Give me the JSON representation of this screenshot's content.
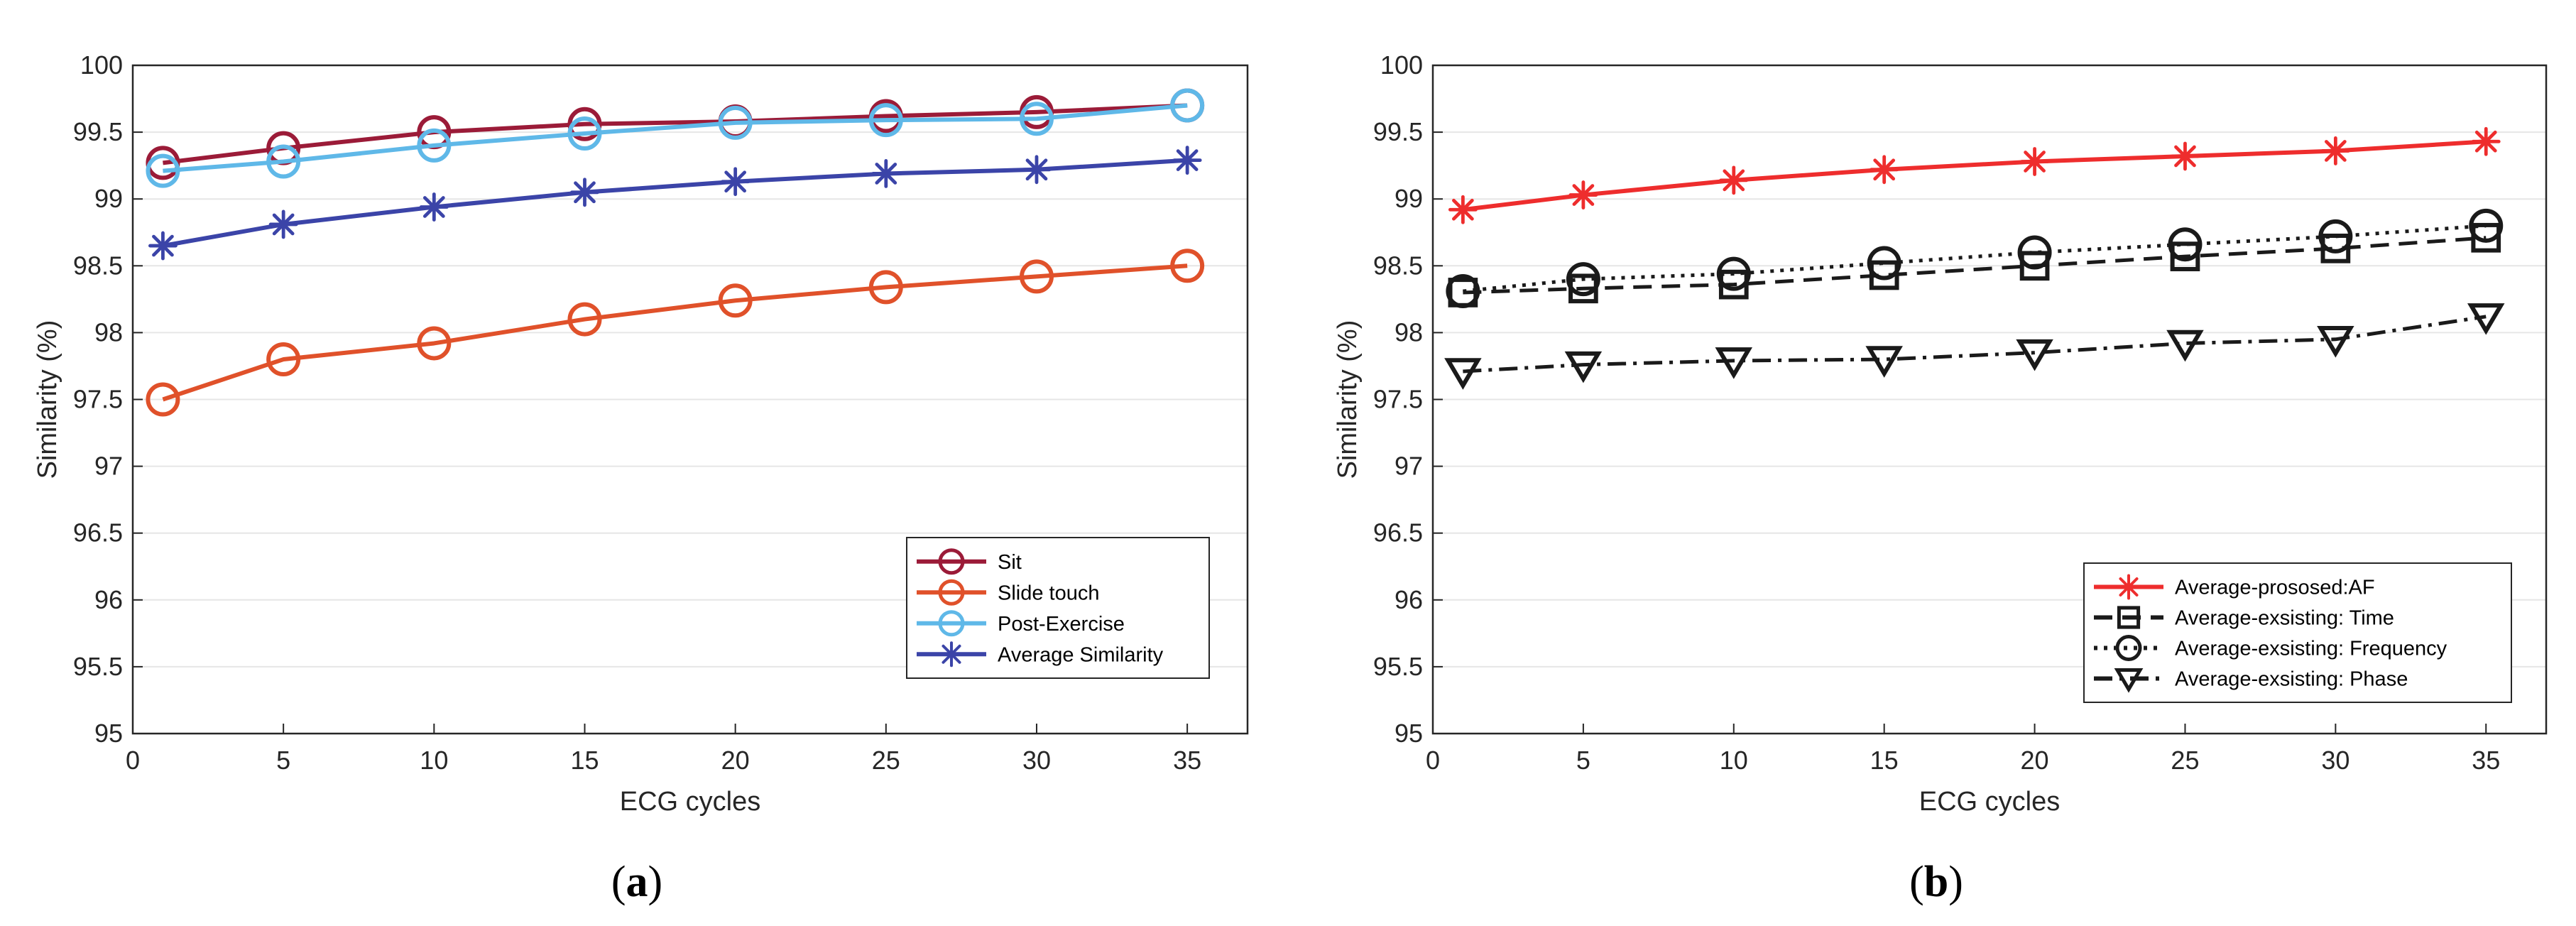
{
  "chart_data": [
    {
      "type": "line",
      "panel_label": {
        "open": "(",
        "letter": "a",
        "close": ")"
      },
      "xlabel": "ECG cycles",
      "ylabel": "Similarity (%)",
      "xlim": [
        0,
        37
      ],
      "ylim": [
        95,
        100
      ],
      "xticks": [
        0,
        5,
        10,
        15,
        20,
        25,
        30,
        35
      ],
      "yticks": [
        95,
        95.5,
        96,
        96.5,
        97,
        97.5,
        98,
        98.5,
        99,
        99.5,
        100
      ],
      "grid": "horizontal",
      "legend_position": "bottom-right",
      "x": [
        1,
        5,
        10,
        15,
        20,
        25,
        30,
        35
      ],
      "series": [
        {
          "name": "Sit",
          "color": "#9b1b38",
          "marker": "circle",
          "dash": "solid",
          "values": [
            99.27,
            99.38,
            99.5,
            99.56,
            99.58,
            99.62,
            99.65,
            99.7
          ]
        },
        {
          "name": "Slide touch",
          "color": "#e0512a",
          "marker": "circle",
          "dash": "solid",
          "values": [
            97.5,
            97.8,
            97.92,
            98.1,
            98.24,
            98.34,
            98.42,
            98.5
          ]
        },
        {
          "name": "Post-Exercise",
          "color": "#5fb8e8",
          "marker": "circle",
          "dash": "solid",
          "values": [
            99.21,
            99.28,
            99.4,
            99.49,
            99.57,
            99.59,
            99.6,
            99.7
          ]
        },
        {
          "name": "Average Similarity",
          "color": "#3b44a8",
          "marker": "asterisk",
          "dash": "solid",
          "values": [
            98.65,
            98.81,
            98.94,
            99.05,
            99.13,
            99.19,
            99.22,
            99.29
          ]
        }
      ]
    },
    {
      "type": "line",
      "panel_label": {
        "open": "(",
        "letter": "b",
        "close": ")"
      },
      "xlabel": "ECG cycles",
      "ylabel": "Similarity (%)",
      "xlim": [
        0,
        37
      ],
      "ylim": [
        95,
        100
      ],
      "xticks": [
        0,
        5,
        10,
        15,
        20,
        25,
        30,
        35
      ],
      "yticks": [
        95,
        95.5,
        96,
        96.5,
        97,
        97.5,
        98,
        98.5,
        99,
        99.5,
        100
      ],
      "grid": "horizontal",
      "legend_position": "bottom-right",
      "x": [
        1,
        5,
        10,
        15,
        20,
        25,
        30,
        35
      ],
      "series": [
        {
          "name": "Average-prososed:AF",
          "color": "#ee2d2d",
          "marker": "asterisk",
          "dash": "solid",
          "values": [
            98.92,
            99.03,
            99.14,
            99.22,
            99.28,
            99.32,
            99.36,
            99.43
          ]
        },
        {
          "name": "Average-exsisting: Time",
          "color": "#1a1a1a",
          "marker": "square",
          "dash": "dashed",
          "values": [
            98.3,
            98.33,
            98.36,
            98.43,
            98.5,
            98.57,
            98.63,
            98.71
          ]
        },
        {
          "name": "Average-exsisting: Frequency",
          "color": "#1a1a1a",
          "marker": "circle",
          "dash": "dotted",
          "values": [
            98.31,
            98.4,
            98.44,
            98.52,
            98.6,
            98.66,
            98.72,
            98.8
          ]
        },
        {
          "name": "Average-exsisting: Phase",
          "color": "#1a1a1a",
          "marker": "triangle-down",
          "dash": "dashdot",
          "values": [
            97.71,
            97.76,
            97.79,
            97.8,
            97.85,
            97.92,
            97.95,
            98.12
          ]
        }
      ]
    }
  ]
}
